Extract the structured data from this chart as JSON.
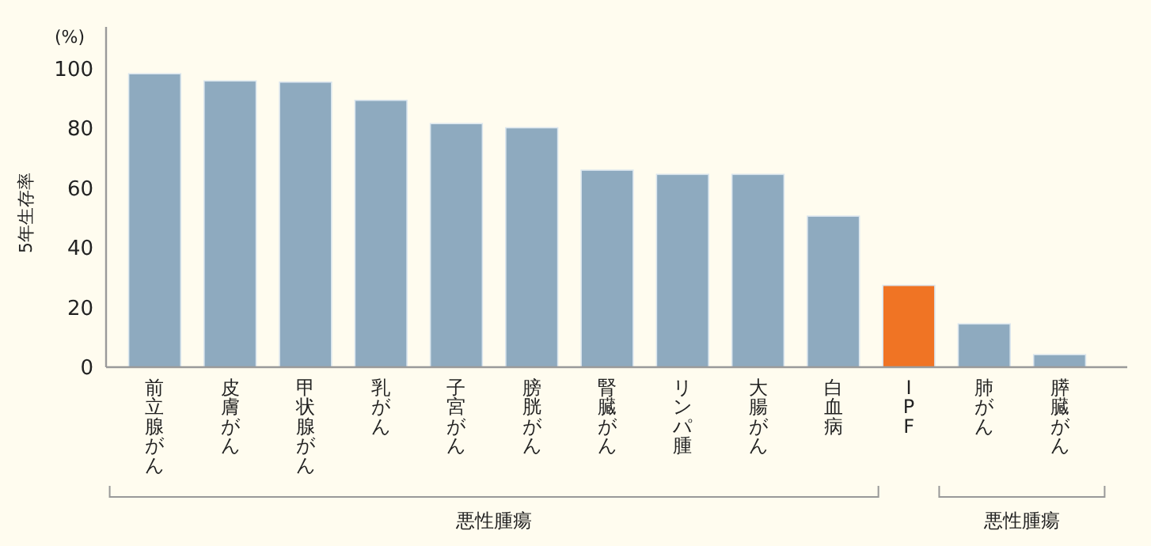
{
  "chart_data": {
    "type": "bar",
    "ylabel": "5年生存率",
    "categories": [
      "前立腺がん",
      "皮膚がん",
      "甲状腺がん",
      "乳がん",
      "子宮がん",
      "膀胱がん",
      "腎臓がん",
      "リンパ腫",
      "大腸がん",
      "白血病",
      "IPF",
      "肺がん",
      "膵臓がん"
    ],
    "values": [
      98.3,
      95.9,
      95.5,
      89.4,
      81.6,
      80.2,
      66,
      64.6,
      64.6,
      50.6,
      27.4,
      14.5,
      4.2
    ],
    "colors": [
      "#8eaabf",
      "#8eaabf",
      "#8eaabf",
      "#8eaabf",
      "#8eaabf",
      "#8eaabf",
      "#8eaabf",
      "#8eaabf",
      "#8eaabf",
      "#8eaabf",
      "#f07424",
      "#8eaabf",
      "#8eaabf"
    ],
    "ylim": [
      0,
      114
    ],
    "yticks": [
      0,
      20,
      40,
      60,
      80,
      100
    ],
    "grid": false,
    "annotations": [
      "(%)",
      "悪性腫瘍",
      "悪性腫瘍"
    ]
  }
}
